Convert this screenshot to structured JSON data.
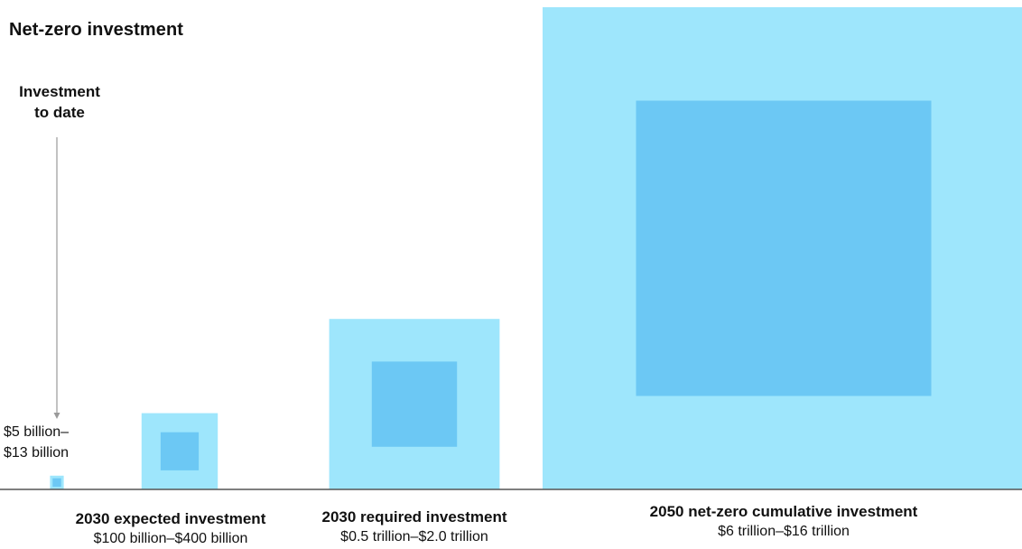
{
  "title": "Net-zero investment",
  "callout": {
    "label_line1": "Investment",
    "label_line2": "to date",
    "value_line1": "$5 billion–",
    "value_line2": "$13 billion"
  },
  "colors": {
    "outer": "#9ee6fc",
    "inner": "#6cc8f4",
    "baseline": "#555555",
    "arrow": "#9a9a9a"
  },
  "chart_data": {
    "type": "nested-square-area",
    "unit": "billion USD",
    "title": "Net-zero investment",
    "series": [
      {
        "name": "Investment to date",
        "low": 5,
        "high": 13,
        "range_label": "$5 billion–$13 billion"
      },
      {
        "name": "2030 expected investment",
        "low": 100,
        "high": 400,
        "range_label": "$100 billion–$400 billion"
      },
      {
        "name": "2030 required investment",
        "low": 500,
        "high": 2000,
        "range_label": "$0.5 trillion–$2.0 trillion"
      },
      {
        "name": "2050 net-zero cumulative investment",
        "low": 6000,
        "high": 16000,
        "range_label": "$6 trillion–$16 trillion"
      }
    ]
  }
}
